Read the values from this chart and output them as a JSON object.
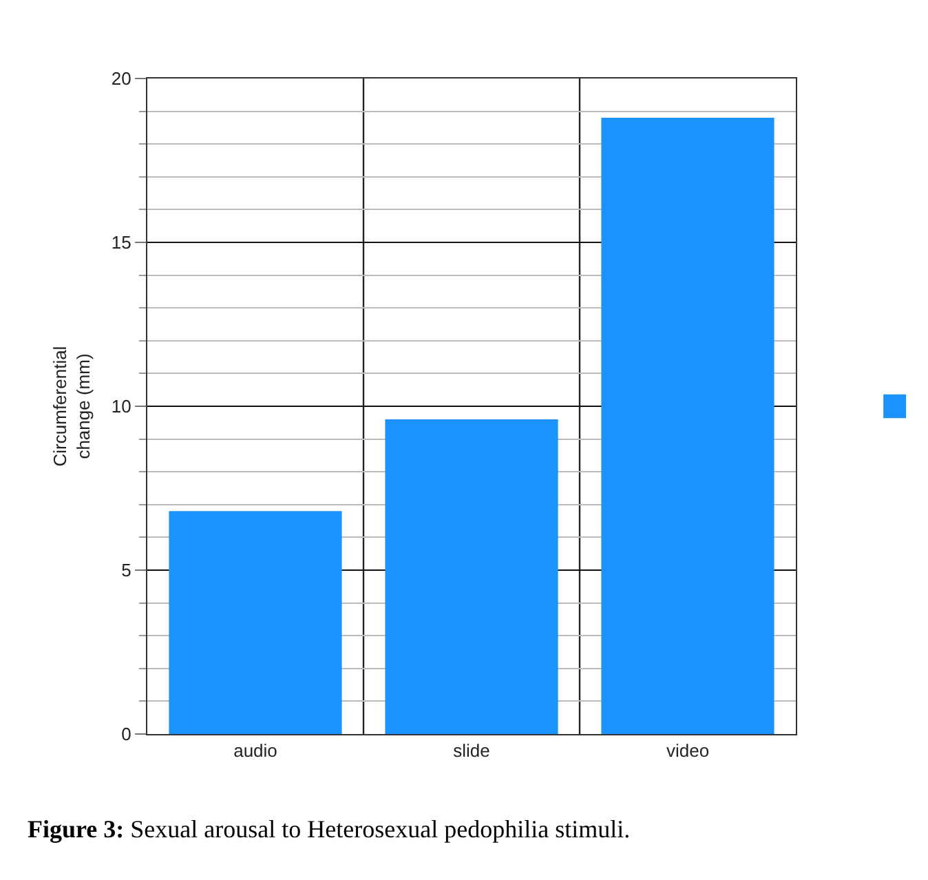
{
  "chart_data": {
    "type": "bar",
    "ylabel": "Circumferential\nchange (mm)",
    "categories": [
      "audio",
      "slide",
      "video"
    ],
    "series": [
      {
        "color": "#1a94fc",
        "values": [
          6.8,
          9.6,
          18.8
        ]
      }
    ],
    "ylim": [
      0,
      20
    ],
    "yticks": [
      0,
      {
        "value": 1,
        "label": null
      },
      {
        "value": 2,
        "label": null
      },
      {
        "value": 3,
        "label": null
      },
      {
        "value": 4,
        "label": null
      },
      5,
      {
        "value": 6,
        "label": null
      },
      {
        "value": 7,
        "label": null
      },
      {
        "value": 8,
        "label": null
      },
      {
        "value": 9,
        "label": null
      },
      10,
      {
        "value": 11,
        "label": null
      },
      {
        "value": 12,
        "label": null
      },
      {
        "value": 13,
        "label": null
      },
      {
        "value": 14,
        "label": null
      },
      15,
      {
        "value": 16,
        "label": null
      },
      {
        "value": 17,
        "label": null
      },
      {
        "value": 18,
        "label": null
      },
      {
        "value": 19,
        "label": null
      },
      20
    ],
    "grid": true,
    "annotations": [
      "Figure 3: Sexual arousal to Heterosexual pedophilia stimuli."
    ]
  }
}
